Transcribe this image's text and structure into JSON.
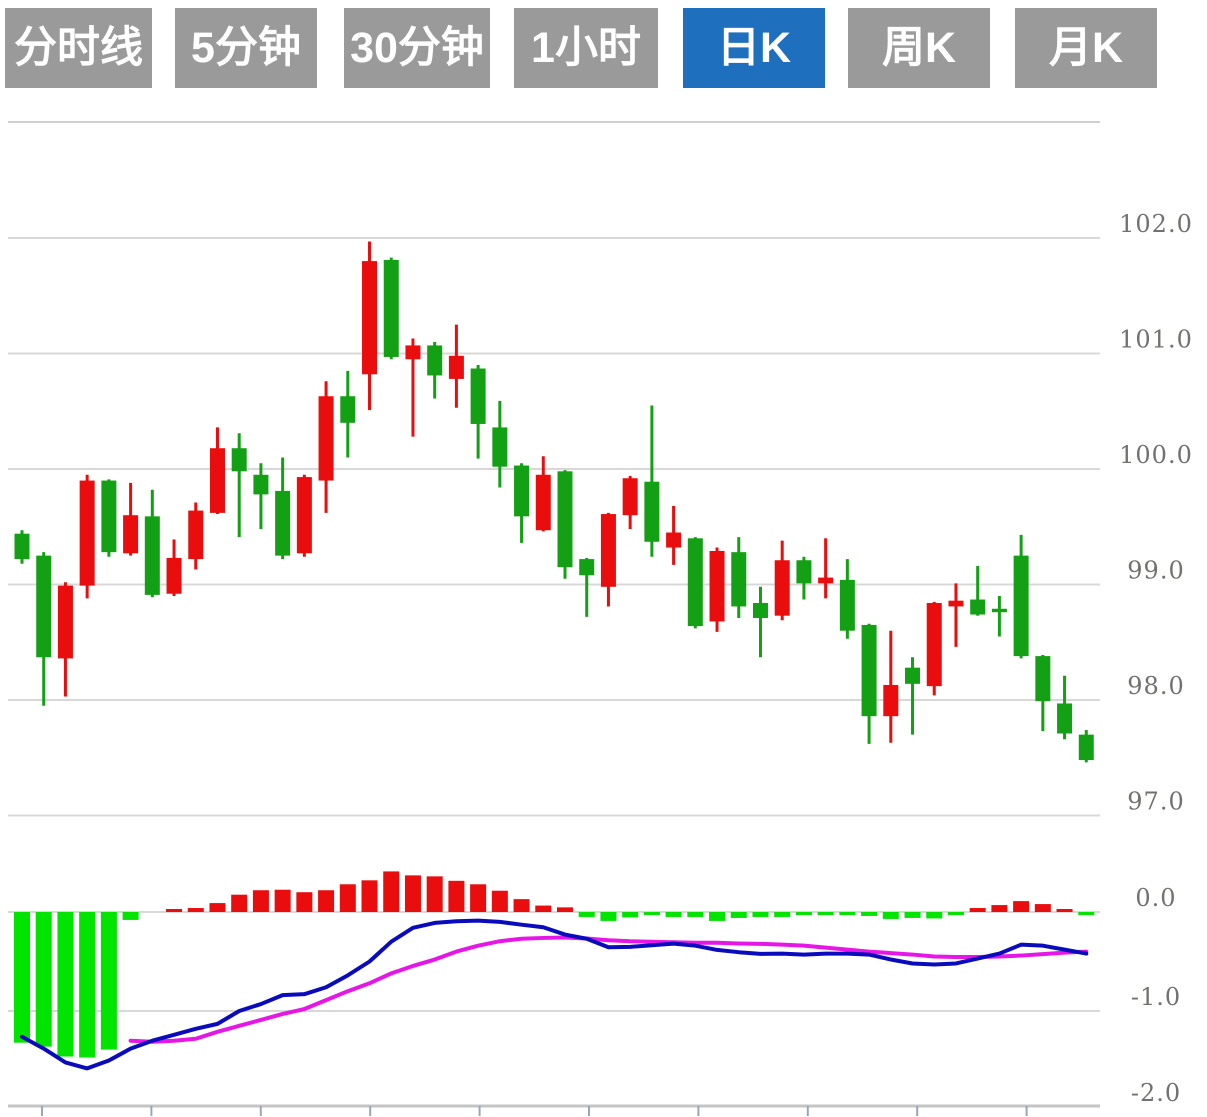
{
  "toolbar": {
    "active_index": 4,
    "buttons": [
      {
        "label": "分时线"
      },
      {
        "label": "5分钟"
      },
      {
        "label": "30分钟"
      },
      {
        "label": "1小时"
      },
      {
        "label": "日K"
      },
      {
        "label": "周K"
      },
      {
        "label": "月K"
      }
    ],
    "active_color": "#1e70bf",
    "inactive_color": "#9a9a9a",
    "text_color": "#ffffff"
  },
  "colors": {
    "background": "#ffffff",
    "candle_up": "#14a014",
    "candle_down": "#e90d0d",
    "hist_positive": "#e90d0d",
    "hist_negative": "#00e400",
    "dif_line": "#0b0bbe",
    "dea_line": "#e616e6",
    "grid": "#d8d8d8",
    "top_border": "#cfcfcf",
    "bottom_axis": "#c4c4c4",
    "tick": "#9aa6b8",
    "axis_text": "#72716f"
  },
  "price_axis": {
    "labels": [
      "102.0",
      "101.0",
      "100.0",
      "99.0",
      "98.0",
      "97.0"
    ],
    "values": [
      102,
      101,
      100,
      99,
      98,
      97
    ]
  },
  "macd_axis": {
    "labels": [
      "0.0",
      "-1.0",
      "-2.0"
    ],
    "values": [
      0,
      -1,
      -2
    ]
  },
  "chart_data": [
    {
      "type": "candlestick",
      "name": "daily-k-price",
      "title": "",
      "ylabel": "price",
      "ylim": [
        96.9,
        102.35
      ],
      "grid": true,
      "open": [
        99.22,
        98.37,
        98.99,
        99.9,
        99.28,
        99.6,
        98.91,
        99.23,
        99.64,
        100.18,
        99.98,
        99.78,
        99.25,
        99.93,
        100.63,
        100.4,
        101.8,
        100.97,
        101.07,
        100.81,
        100.98,
        100.39,
        100.02,
        99.59,
        99.95,
        99.15,
        99.08,
        99.61,
        99.92,
        99.37,
        99.45,
        98.64,
        99.29,
        98.81,
        98.71,
        99.21,
        99.01,
        99.06,
        98.6,
        97.86,
        98.13,
        98.14,
        98.84,
        98.86,
        98.74,
        98.76,
        98.38,
        97.99,
        97.71,
        97.48
      ],
      "high": [
        99.47,
        99.28,
        99.02,
        99.95,
        99.91,
        99.88,
        99.82,
        99.39,
        99.71,
        100.36,
        100.31,
        100.05,
        100.1,
        99.95,
        100.76,
        100.85,
        101.97,
        101.83,
        101.13,
        101.1,
        101.25,
        100.9,
        100.59,
        100.05,
        100.11,
        99.99,
        99.23,
        99.62,
        99.94,
        100.55,
        99.68,
        99.41,
        99.32,
        99.41,
        98.98,
        99.38,
        99.24,
        99.4,
        99.22,
        98.66,
        98.6,
        98.37,
        98.85,
        99.01,
        99.16,
        98.9,
        99.43,
        98.39,
        98.21,
        97.74
      ],
      "low": [
        99.18,
        97.95,
        98.03,
        98.88,
        99.24,
        99.25,
        98.89,
        98.9,
        99.13,
        99.61,
        99.41,
        99.48,
        99.22,
        99.24,
        99.62,
        100.1,
        100.51,
        100.95,
        100.28,
        100.61,
        100.53,
        100.09,
        99.84,
        99.36,
        99.46,
        99.05,
        98.72,
        98.81,
        99.48,
        99.24,
        99.17,
        98.62,
        98.59,
        98.71,
        98.37,
        98.69,
        98.87,
        98.88,
        98.53,
        97.62,
        97.63,
        97.7,
        98.04,
        98.46,
        98.73,
        98.55,
        98.36,
        97.73,
        97.66,
        97.46
      ],
      "close": [
        99.44,
        99.25,
        98.36,
        98.99,
        99.9,
        99.27,
        99.59,
        98.92,
        99.22,
        99.62,
        100.18,
        99.95,
        99.81,
        99.27,
        99.9,
        100.63,
        100.82,
        101.81,
        100.95,
        101.07,
        100.78,
        100.87,
        100.36,
        100.03,
        99.47,
        99.98,
        99.22,
        98.98,
        99.6,
        99.89,
        99.32,
        99.4,
        98.68,
        99.28,
        98.84,
        98.73,
        99.21,
        99.01,
        99.04,
        98.65,
        97.86,
        98.28,
        98.12,
        98.81,
        98.87,
        98.79,
        99.25,
        98.38,
        97.97,
        97.7
      ]
    },
    {
      "type": "bar",
      "name": "macd-histogram",
      "ylim": [
        -2.0,
        0.5
      ],
      "values": [
        -1.32,
        -1.36,
        -1.46,
        -1.47,
        -1.39,
        -0.08,
        0.0,
        0.03,
        0.04,
        0.09,
        0.175,
        0.22,
        0.225,
        0.2,
        0.22,
        0.28,
        0.32,
        0.41,
        0.37,
        0.36,
        0.315,
        0.28,
        0.215,
        0.13,
        0.065,
        0.047,
        -0.05,
        -0.09,
        -0.055,
        -0.03,
        -0.05,
        -0.05,
        -0.09,
        -0.06,
        -0.05,
        -0.05,
        -0.03,
        -0.03,
        -0.02,
        -0.04,
        -0.07,
        -0.06,
        -0.065,
        -0.03,
        0.04,
        0.07,
        0.11,
        0.08,
        0.03,
        -0.02
      ]
    },
    {
      "type": "line",
      "name": "DIF",
      "values": [
        -1.26,
        -1.38,
        -1.52,
        -1.58,
        -1.5,
        -1.38,
        -1.3,
        -1.24,
        -1.18,
        -1.13,
        -1.0,
        -0.93,
        -0.84,
        -0.83,
        -0.76,
        -0.64,
        -0.5,
        -0.3,
        -0.16,
        -0.11,
        -0.094,
        -0.087,
        -0.1,
        -0.128,
        -0.154,
        -0.228,
        -0.27,
        -0.356,
        -0.352,
        -0.336,
        -0.319,
        -0.34,
        -0.383,
        -0.406,
        -0.423,
        -0.42,
        -0.43,
        -0.42,
        -0.42,
        -0.43,
        -0.48,
        -0.52,
        -0.53,
        -0.52,
        -0.47,
        -0.42,
        -0.33,
        -0.34,
        -0.38,
        -0.42
      ]
    },
    {
      "type": "line",
      "name": "DEA",
      "values": [
        null,
        null,
        null,
        null,
        null,
        -1.3,
        -1.31,
        -1.3,
        -1.28,
        -1.21,
        -1.15,
        -1.09,
        -1.03,
        -0.98,
        -0.89,
        -0.8,
        -0.72,
        -0.62,
        -0.545,
        -0.48,
        -0.4,
        -0.34,
        -0.295,
        -0.27,
        -0.262,
        -0.258,
        -0.268,
        -0.285,
        -0.295,
        -0.3,
        -0.305,
        -0.31,
        -0.31,
        -0.318,
        -0.322,
        -0.33,
        -0.34,
        -0.36,
        -0.38,
        -0.4,
        -0.415,
        -0.43,
        -0.45,
        -0.455,
        -0.455,
        -0.45,
        -0.44,
        -0.425,
        -0.41,
        -0.4
      ]
    }
  ]
}
